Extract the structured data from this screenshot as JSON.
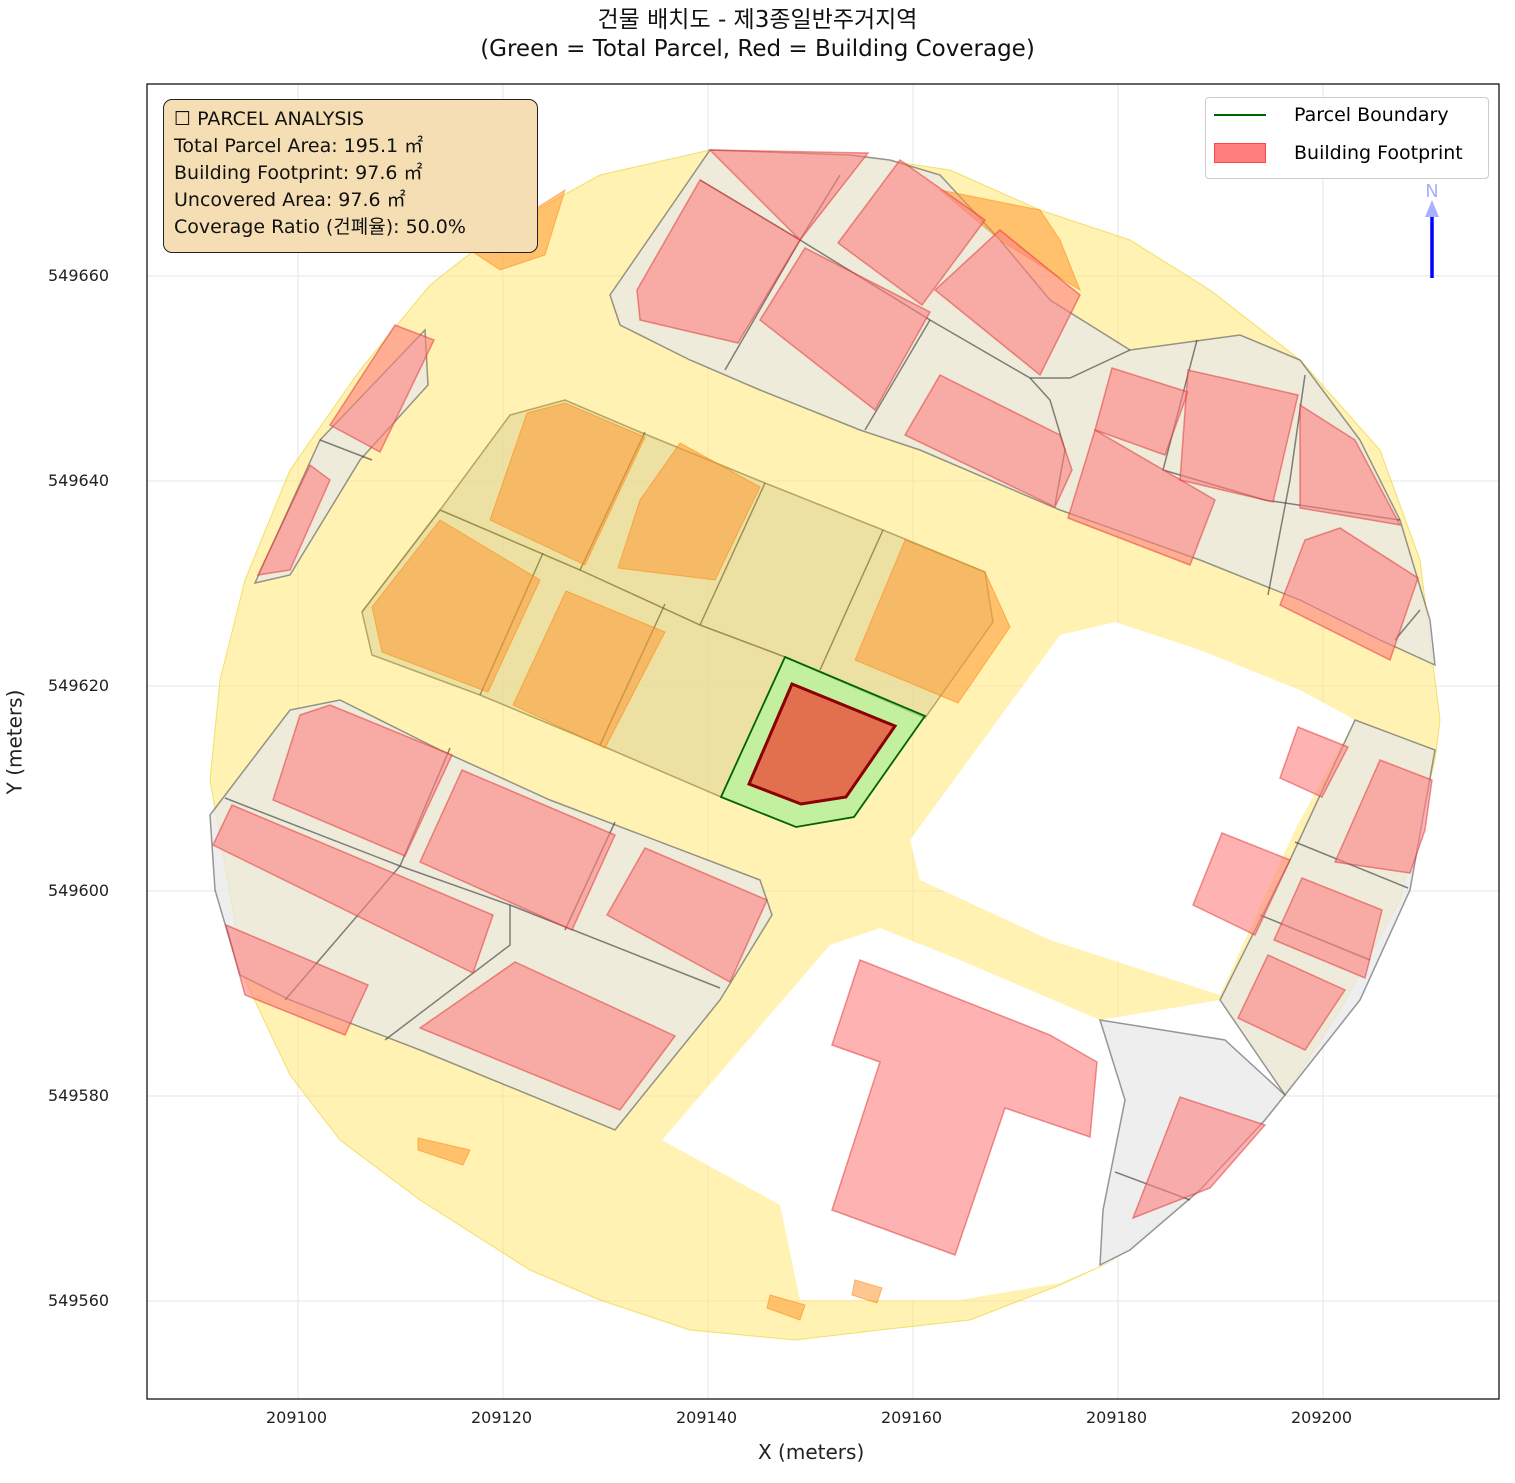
{
  "title_line1": "건물 배치도 - 제3종일반주거지역",
  "title_line2": "(Green = Total Parcel, Red = Building Coverage)",
  "info": {
    "heading": "☐ PARCEL ANALYSIS",
    "total_parcel": "Total Parcel Area: 195.1 ㎡",
    "building_footprint": "Building Footprint: 97.6 ㎡",
    "uncovered": "Uncovered Area: 97.6 ㎡",
    "coverage": "Coverage Ratio (건폐율): 50.0%"
  },
  "legend": {
    "parcel": "Parcel Boundary",
    "building": "Building Footprint"
  },
  "north_label": "N",
  "colors": {
    "parcel_edge": "#006400",
    "parcel_fill": "#90ee90",
    "building_edge": "#8b0000",
    "building_fill": "#e2704f",
    "road": "#ffe666",
    "other_building": "#ff7f7f",
    "north_arrow": "#0000ff"
  },
  "chart_data": {
    "type": "map",
    "title": "건물 배치도 - 제3종일반주거지역 (Green = Total Parcel, Red = Building Coverage)",
    "xlabel": "X (meters)",
    "ylabel": "Y (meters)",
    "xlim": [
      209085,
      209217
    ],
    "ylim": [
      549551,
      549679
    ],
    "xticks": [
      "209100",
      "209120",
      "209140",
      "209160",
      "209180",
      "209200"
    ],
    "yticks": [
      "549560",
      "549580",
      "549600",
      "549620",
      "549640",
      "549660"
    ],
    "grid": true,
    "legend_position": "top-right",
    "parcel_polygon": [
      [
        209147.5,
        549622.8
      ],
      [
        209161.2,
        549617.1
      ],
      [
        209154.2,
        549607.2
      ],
      [
        209148.6,
        549606.2
      ],
      [
        209141.3,
        549609.2
      ]
    ],
    "building_polygon": [
      [
        209148.2,
        549620.2
      ],
      [
        209158.2,
        549616.1
      ],
      [
        209153.5,
        549609.2
      ],
      [
        209149.1,
        549608.5
      ],
      [
        209144.0,
        549610.4
      ]
    ]
  }
}
